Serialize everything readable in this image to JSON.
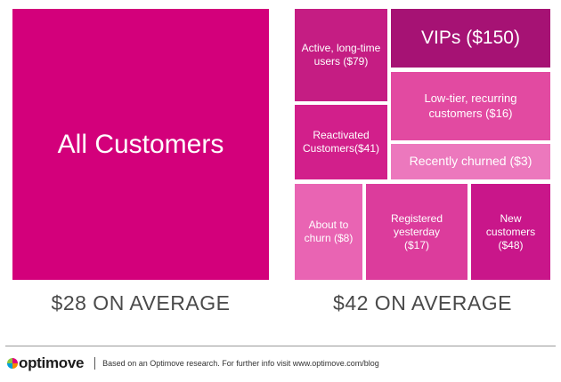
{
  "left_panel": {
    "tile_label": "All Customers",
    "tile_color": "#d3007b",
    "caption": "$28 ON AVERAGE"
  },
  "right_panel": {
    "caption": "$42 ON AVERAGE",
    "segments": [
      {
        "lines": [
          "Active, long-time",
          "users ($79)"
        ],
        "color": "#c51d83",
        "value": 79
      },
      {
        "lines": [
          "VIPs ($150)"
        ],
        "color": "#a61274",
        "value": 150
      },
      {
        "lines": [
          "Low-tier, recurring",
          "customers ($16)"
        ],
        "color": "#e24aa1",
        "value": 16
      },
      {
        "lines": [
          "Reactivated",
          "Customers($41)"
        ],
        "color": "#d21f8b",
        "value": 41
      },
      {
        "lines": [
          "Recently churned ($3)"
        ],
        "color": "#ec78bd",
        "value": 3
      },
      {
        "lines": [
          "About to",
          "churn ($8)"
        ],
        "color": "#e964b3",
        "value": 8
      },
      {
        "lines": [
          "Registered",
          "yesterday",
          "($17)"
        ],
        "color": "#dc3c9c",
        "value": 17
      },
      {
        "lines": [
          "New",
          "customers",
          "($48)"
        ],
        "color": "#c9168a",
        "value": 48
      }
    ]
  },
  "footer": {
    "logo_text": "optimove",
    "note": "Based on an Optimove research. For further info visit www.optimove.com/blog"
  }
}
